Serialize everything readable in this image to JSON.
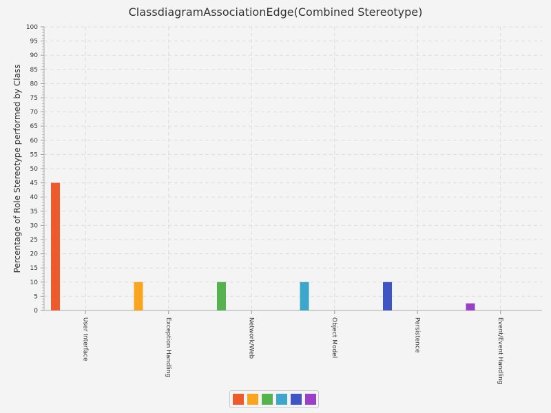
{
  "chart_data": {
    "type": "bar",
    "title": "ClassdiagramAssociationEdge(Combined Stereotype)",
    "xlabel": "",
    "ylabel": "Percentage of Role Stereotype performed by Class",
    "ylim": [
      0,
      100
    ],
    "ytick_step": 5,
    "grid": true,
    "legend_position": "bottom",
    "categories": [
      "User Interface",
      "Exception Handling",
      "Network/Web",
      "Object Model",
      "Persistence",
      "Event/Event Handling"
    ],
    "values": [
      45,
      10,
      10,
      10,
      10,
      2.5
    ],
    "colors": [
      "#ee5a2c",
      "#f9a51f",
      "#55b24f",
      "#3ea6c9",
      "#3f55c4",
      "#9a40c8"
    ]
  }
}
